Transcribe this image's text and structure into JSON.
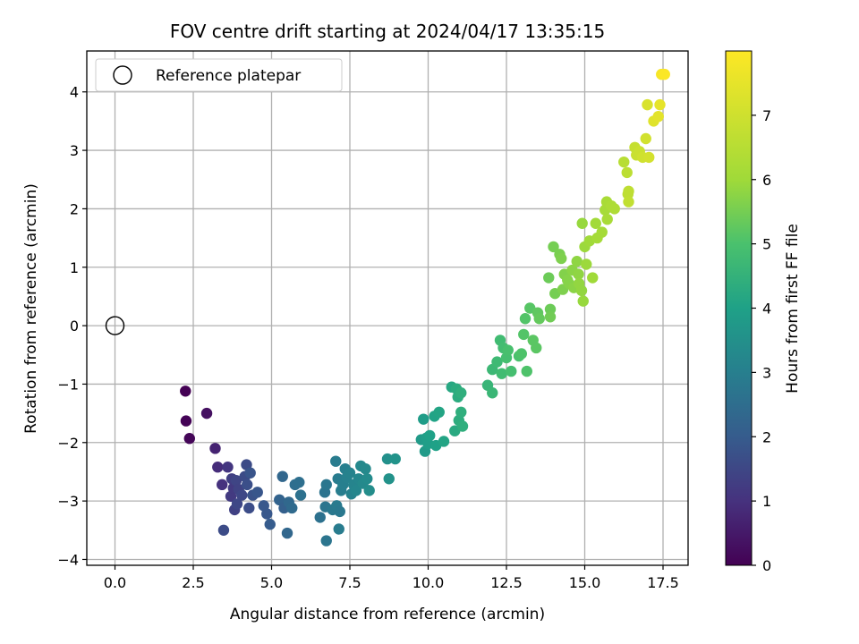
{
  "chart_data": {
    "type": "scatter",
    "title": "FOV centre drift starting at 2024/04/17 13:35:15",
    "xlabel": "Angular distance from reference (arcmin)",
    "ylabel": "Rotation from reference (arcmin)",
    "xlim": [
      -0.9,
      18.3
    ],
    "ylim": [
      -4.1,
      4.7
    ],
    "xticks": [
      0.0,
      2.5,
      5.0,
      7.5,
      10.0,
      12.5,
      15.0,
      17.5
    ],
    "xtick_labels": [
      "0.0",
      "2.5",
      "5.0",
      "7.5",
      "10.0",
      "12.5",
      "15.0",
      "17.5"
    ],
    "yticks": [
      -4,
      -3,
      -2,
      -1,
      0,
      1,
      2,
      3,
      4
    ],
    "ytick_labels": [
      "−4",
      "−3",
      "−2",
      "−1",
      "0",
      "1",
      "2",
      "3",
      "4"
    ],
    "grid": true,
    "legend": {
      "position": "top-left",
      "entries": [
        "Reference platepar"
      ]
    },
    "reference_point": {
      "x": 0.0,
      "y": 0.0,
      "label": "Reference platepar"
    },
    "colorbar": {
      "label": "Hours from first FF file",
      "range": [
        0,
        8
      ],
      "ticks": [
        0,
        1,
        2,
        3,
        4,
        5,
        6,
        7
      ],
      "colormap": "viridis"
    },
    "points": [
      [
        2.25,
        -1.12,
        0.0
      ],
      [
        2.27,
        -1.63,
        0.05
      ],
      [
        2.38,
        -1.93,
        0.1
      ],
      [
        2.93,
        -1.5,
        0.3
      ],
      [
        3.2,
        -2.1,
        0.7
      ],
      [
        3.28,
        -2.42,
        0.9
      ],
      [
        3.42,
        -2.72,
        1.0
      ],
      [
        3.47,
        -3.5,
        1.6
      ],
      [
        3.6,
        -2.42,
        1.1
      ],
      [
        3.7,
        -2.92,
        1.2
      ],
      [
        3.73,
        -2.62,
        1.3
      ],
      [
        3.78,
        -2.78,
        1.2
      ],
      [
        3.82,
        -3.15,
        1.35
      ],
      [
        3.87,
        -2.65,
        1.45
      ],
      [
        3.9,
        -3.05,
        1.5
      ],
      [
        3.95,
        -2.8,
        1.4
      ],
      [
        4.05,
        -2.9,
        1.5
      ],
      [
        4.15,
        -2.58,
        1.6
      ],
      [
        4.2,
        -2.38,
        1.6
      ],
      [
        4.22,
        -2.72,
        1.7
      ],
      [
        4.28,
        -3.12,
        1.65
      ],
      [
        4.32,
        -2.52,
        1.8
      ],
      [
        4.4,
        -2.9,
        1.75
      ],
      [
        4.55,
        -2.85,
        1.85
      ],
      [
        4.75,
        -3.08,
        1.9
      ],
      [
        4.85,
        -3.22,
        1.9
      ],
      [
        4.95,
        -3.4,
        2.0
      ],
      [
        5.25,
        -2.98,
        2.2
      ],
      [
        5.35,
        -2.58,
        2.3
      ],
      [
        5.4,
        -3.12,
        2.1
      ],
      [
        5.5,
        -3.55,
        2.3
      ],
      [
        5.55,
        -3.02,
        2.35
      ],
      [
        5.65,
        -3.12,
        2.4
      ],
      [
        5.75,
        -2.72,
        2.5
      ],
      [
        5.88,
        -2.68,
        2.55
      ],
      [
        5.93,
        -2.9,
        2.6
      ],
      [
        6.55,
        -3.28,
        2.6
      ],
      [
        6.7,
        -2.85,
        2.65
      ],
      [
        6.72,
        -3.1,
        2.7
      ],
      [
        6.75,
        -3.68,
        2.7
      ],
      [
        6.75,
        -2.72,
        2.75
      ],
      [
        6.95,
        -3.15,
        2.8
      ],
      [
        7.05,
        -2.32,
        2.9
      ],
      [
        7.08,
        -3.08,
        2.85
      ],
      [
        7.12,
        -2.62,
        2.9
      ],
      [
        7.15,
        -3.48,
        2.9
      ],
      [
        7.18,
        -3.18,
        2.8
      ],
      [
        7.22,
        -2.82,
        2.95
      ],
      [
        7.28,
        -2.72,
        3.0
      ],
      [
        7.35,
        -2.45,
        3.0
      ],
      [
        7.4,
        -2.6,
        3.05
      ],
      [
        7.5,
        -2.52,
        3.1
      ],
      [
        7.55,
        -2.88,
        3.1
      ],
      [
        7.62,
        -2.72,
        3.15
      ],
      [
        7.7,
        -2.82,
        3.2
      ],
      [
        7.78,
        -2.62,
        3.2
      ],
      [
        7.85,
        -2.4,
        3.25
      ],
      [
        7.92,
        -2.7,
        3.3
      ],
      [
        8.0,
        -2.45,
        3.3
      ],
      [
        8.05,
        -2.62,
        3.35
      ],
      [
        8.12,
        -2.82,
        3.4
      ],
      [
        8.7,
        -2.28,
        3.5
      ],
      [
        8.75,
        -2.62,
        3.55
      ],
      [
        8.95,
        -2.28,
        3.6
      ],
      [
        9.78,
        -1.95,
        3.8
      ],
      [
        9.85,
        -1.6,
        3.85
      ],
      [
        9.9,
        -2.15,
        3.8
      ],
      [
        9.95,
        -1.92,
        3.9
      ],
      [
        10.0,
        -2.02,
        3.9
      ],
      [
        10.05,
        -1.88,
        4.0
      ],
      [
        10.2,
        -1.55,
        4.05
      ],
      [
        10.25,
        -2.05,
        4.0
      ],
      [
        10.35,
        -1.48,
        4.1
      ],
      [
        10.5,
        -1.98,
        4.1
      ],
      [
        10.75,
        -1.05,
        4.2
      ],
      [
        10.85,
        -1.8,
        4.25
      ],
      [
        10.9,
        -1.08,
        4.3
      ],
      [
        10.95,
        -1.22,
        4.3
      ],
      [
        10.98,
        -1.62,
        4.35
      ],
      [
        11.05,
        -1.15,
        4.4
      ],
      [
        11.05,
        -1.48,
        4.4
      ],
      [
        11.1,
        -1.72,
        4.4
      ],
      [
        11.9,
        -1.02,
        4.6
      ],
      [
        12.05,
        -1.15,
        4.65
      ],
      [
        12.05,
        -0.75,
        4.7
      ],
      [
        12.2,
        -0.62,
        4.75
      ],
      [
        12.3,
        -0.25,
        4.8
      ],
      [
        12.35,
        -0.82,
        4.8
      ],
      [
        12.4,
        -0.38,
        4.85
      ],
      [
        12.5,
        -0.55,
        4.9
      ],
      [
        12.55,
        -0.42,
        4.95
      ],
      [
        12.65,
        -0.78,
        4.9
      ],
      [
        12.9,
        -0.52,
        5.0
      ],
      [
        12.98,
        -0.48,
        5.05
      ],
      [
        13.05,
        -0.15,
        5.1
      ],
      [
        13.1,
        0.12,
        5.1
      ],
      [
        13.15,
        -0.78,
        5.05
      ],
      [
        13.25,
        0.3,
        5.15
      ],
      [
        13.35,
        -0.25,
        5.2
      ],
      [
        13.45,
        -0.38,
        5.2
      ],
      [
        13.5,
        0.22,
        5.25
      ],
      [
        13.55,
        0.12,
        5.3
      ],
      [
        13.85,
        0.82,
        5.4
      ],
      [
        13.9,
        0.28,
        5.4
      ],
      [
        13.9,
        0.15,
        5.45
      ],
      [
        14.0,
        1.35,
        5.5
      ],
      [
        14.05,
        0.55,
        5.5
      ],
      [
        14.2,
        1.22,
        5.55
      ],
      [
        14.25,
        1.15,
        5.6
      ],
      [
        14.3,
        0.62,
        5.6
      ],
      [
        14.35,
        0.88,
        5.65
      ],
      [
        14.45,
        0.78,
        5.7
      ],
      [
        14.5,
        0.72,
        5.7
      ],
      [
        14.6,
        0.95,
        5.75
      ],
      [
        14.65,
        0.65,
        5.75
      ],
      [
        14.75,
        1.1,
        5.8
      ],
      [
        14.8,
        0.88,
        5.8
      ],
      [
        14.82,
        0.72,
        5.85
      ],
      [
        14.9,
        0.6,
        5.85
      ],
      [
        14.92,
        1.75,
        5.9
      ],
      [
        14.95,
        0.42,
        5.9
      ],
      [
        15.0,
        1.35,
        5.95
      ],
      [
        15.05,
        1.05,
        5.95
      ],
      [
        15.15,
        1.45,
        6.0
      ],
      [
        15.25,
        0.82,
        6.0
      ],
      [
        15.35,
        1.75,
        6.05
      ],
      [
        15.4,
        1.5,
        6.1
      ],
      [
        15.55,
        1.6,
        6.1
      ],
      [
        15.65,
        1.98,
        6.15
      ],
      [
        15.7,
        2.12,
        6.2
      ],
      [
        15.72,
        1.82,
        6.2
      ],
      [
        15.85,
        2.05,
        6.25
      ],
      [
        15.95,
        2.0,
        6.3
      ],
      [
        16.25,
        2.8,
        6.5
      ],
      [
        16.35,
        2.62,
        6.6
      ],
      [
        16.38,
        2.25,
        6.6
      ],
      [
        16.4,
        2.3,
        6.65
      ],
      [
        16.4,
        2.12,
        6.7
      ],
      [
        16.6,
        3.05,
        6.8
      ],
      [
        16.65,
        2.92,
        6.85
      ],
      [
        16.75,
        2.98,
        6.9
      ],
      [
        16.85,
        2.88,
        7.0
      ],
      [
        16.95,
        3.2,
        7.05
      ],
      [
        17.0,
        3.78,
        7.2
      ],
      [
        17.05,
        2.88,
        7.1
      ],
      [
        17.2,
        3.5,
        7.35
      ],
      [
        17.35,
        3.58,
        7.45
      ],
      [
        17.4,
        3.78,
        7.5
      ],
      [
        17.45,
        4.3,
        7.85
      ],
      [
        17.55,
        4.3,
        7.95
      ]
    ]
  }
}
